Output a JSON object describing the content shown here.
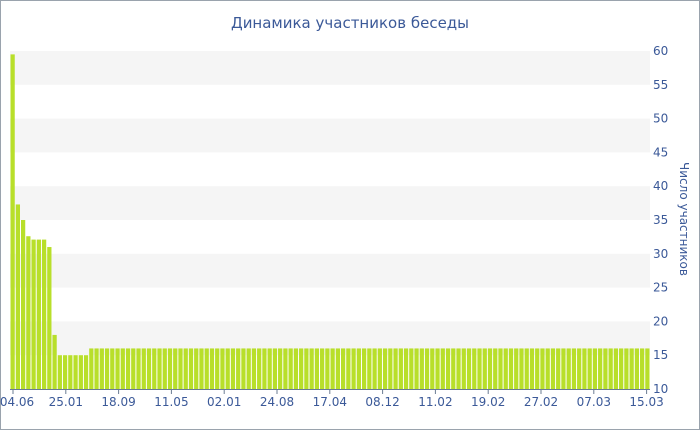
{
  "chart_data": {
    "type": "bar",
    "title": "Динамика участников беседы",
    "ylabel": "Число участников",
    "xlabel": "",
    "ylim": [
      10,
      60
    ],
    "yticks": [
      10,
      15,
      20,
      25,
      30,
      35,
      40,
      45,
      50,
      55,
      60
    ],
    "x_tick_labels": [
      "04.06",
      "25.01",
      "18.09",
      "11.05",
      "02.01",
      "24.08",
      "17.04",
      "08.12",
      "11.02",
      "19.02",
      "27.02",
      "07.03",
      "15.03"
    ],
    "grid": "horizontal alternating bands",
    "bar_color": "#b8df2a",
    "band_color": "#f5f5f5",
    "text_color": "#3b5998",
    "series": [
      {
        "values": [
          59.5,
          37.3,
          35,
          32.6,
          32.1,
          32.1,
          32.1,
          31,
          18,
          15,
          15,
          15,
          15,
          15,
          15,
          16,
          16,
          16,
          16,
          16,
          16,
          16,
          16,
          16,
          16,
          16,
          16,
          16,
          16,
          16,
          16,
          16,
          16,
          16,
          16,
          16,
          16,
          16,
          16,
          16,
          16,
          16,
          16,
          16,
          16,
          16,
          16,
          16,
          16,
          16,
          16,
          16,
          16,
          16,
          16,
          16,
          16,
          16,
          16,
          16,
          16,
          16,
          16,
          16,
          16,
          16,
          16,
          16,
          16,
          16,
          16,
          16,
          16,
          16,
          16,
          16,
          16,
          16,
          16,
          16,
          16,
          16,
          16,
          16,
          16,
          16,
          16,
          16,
          16,
          16,
          16,
          16,
          16,
          16,
          16,
          16,
          16,
          16,
          16,
          16,
          16,
          16,
          16,
          16,
          16,
          16,
          16,
          16,
          16,
          16,
          16,
          16,
          16,
          16,
          16,
          16,
          16,
          16,
          16,
          16,
          16,
          16
        ]
      }
    ]
  }
}
